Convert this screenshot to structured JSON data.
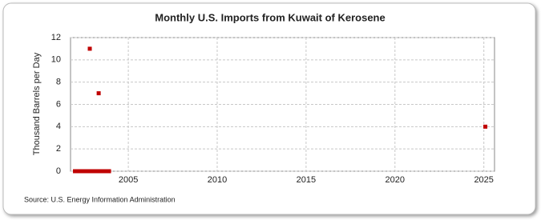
{
  "chart_data": {
    "type": "scatter",
    "title": "Monthly U.S. Imports from Kuwait of Kerosene",
    "y_label": "Thousand Barrels per Day",
    "source": "Source: U.S. Energy Information Administration",
    "x": [
      2002.0,
      2002.083,
      2002.167,
      2002.25,
      2002.333,
      2002.417,
      2002.5,
      2002.583,
      2002.667,
      2002.75,
      2002.833,
      2002.917,
      2003.0,
      2003.083,
      2003.167,
      2003.25,
      2003.333,
      2003.417,
      2003.5,
      2003.583,
      2003.667,
      2003.75,
      2003.833,
      2003.917,
      2025.083
    ],
    "values": [
      0,
      0,
      0,
      0,
      0,
      0,
      0,
      0,
      0,
      0,
      11,
      0,
      0,
      0,
      0,
      0,
      7,
      0,
      0,
      0,
      0,
      0,
      0,
      0,
      4
    ],
    "color": "#c00000",
    "xlim": [
      2001.75,
      2025.6
    ],
    "xticks": [
      2005,
      2010,
      2015,
      2020,
      2025
    ],
    "ylim": [
      0,
      12
    ],
    "yticks": [
      0,
      2,
      4,
      6,
      8,
      10,
      12
    ],
    "grid": true
  }
}
